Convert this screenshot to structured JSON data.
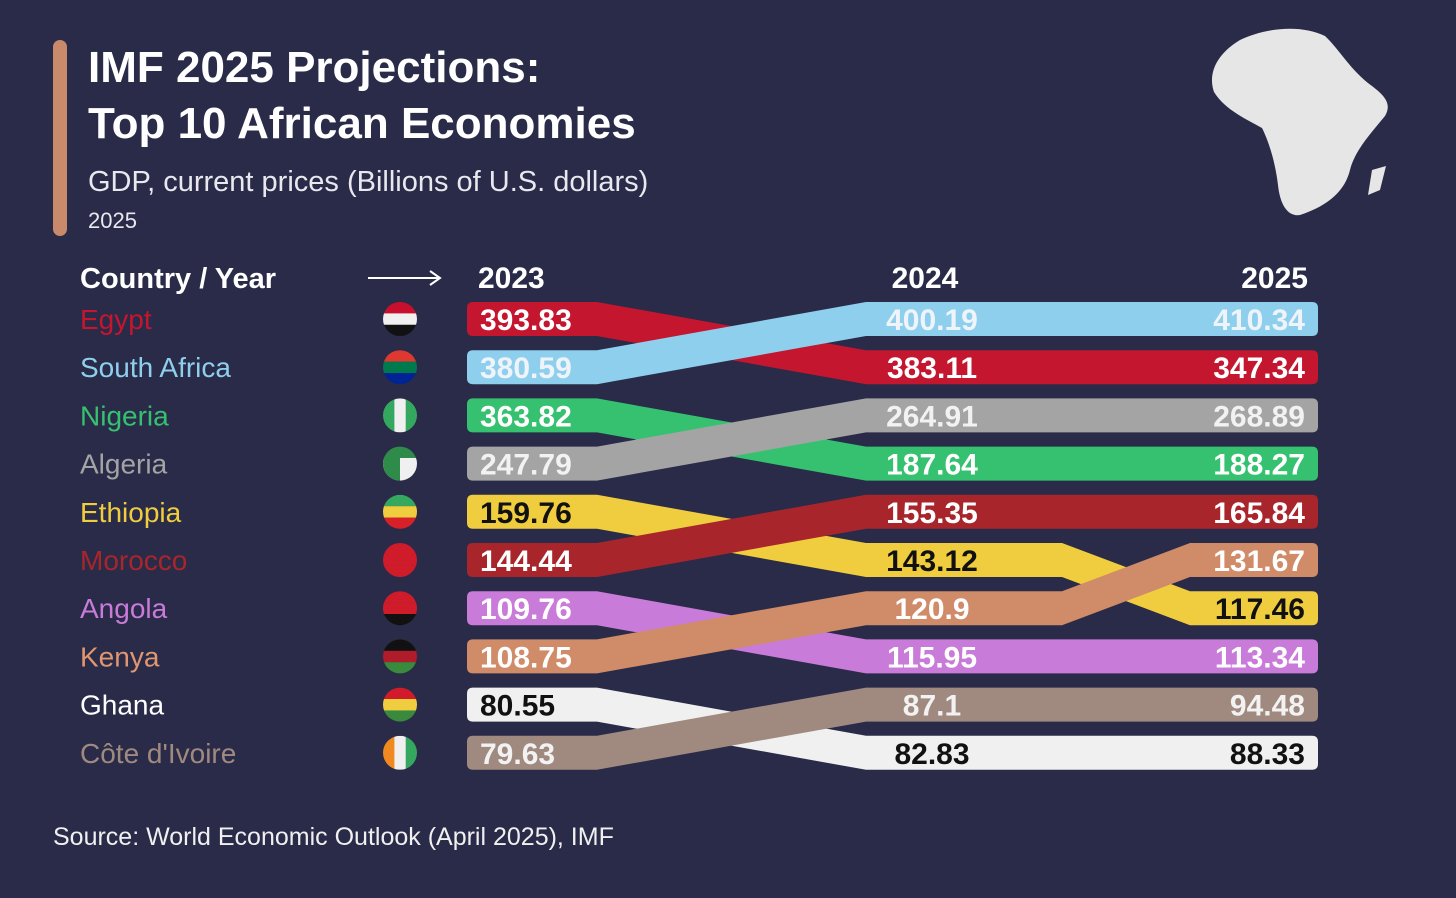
{
  "title_line1": "IMF 2025 Projections:",
  "title_line2": "Top 10 African Economies",
  "subtitle": "GDP, current prices (Billions of U.S. dollars)",
  "year_note": "2025",
  "source": "Source: World Economic Outlook (April 2025), IMF",
  "icons": {
    "map": "africa-map-icon",
    "arrow": "arrow-right-icon"
  },
  "chart_data": {
    "type": "bump",
    "header_label": "Country / Year",
    "years": [
      "2023",
      "2024",
      "2025"
    ],
    "series": [
      {
        "name": "Egypt",
        "color": "#c4162f",
        "text": "#ffffff",
        "values": [
          393.83,
          383.11,
          347.34
        ]
      },
      {
        "name": "South Africa",
        "color": "#8fcfee",
        "text": "#eef4fa",
        "values": [
          380.59,
          400.19,
          410.34
        ]
      },
      {
        "name": "Nigeria",
        "color": "#35c16f",
        "text": "#ffffff",
        "values": [
          363.82,
          187.64,
          188.27
        ]
      },
      {
        "name": "Algeria",
        "color": "#a4a4a4",
        "text": "#f2f2f2",
        "values": [
          247.79,
          264.91,
          268.89
        ]
      },
      {
        "name": "Ethiopia",
        "color": "#f0cd3e",
        "text": "#111111",
        "values": [
          159.76,
          143.12,
          117.46
        ]
      },
      {
        "name": "Morocco",
        "color": "#a8262b",
        "text": "#ffffff",
        "values": [
          144.44,
          155.35,
          165.84
        ]
      },
      {
        "name": "Angola",
        "color": "#c97bd9",
        "text": "#ffffff",
        "values": [
          109.76,
          115.95,
          113.34
        ]
      },
      {
        "name": "Kenya",
        "color": "#d08b68",
        "text": "#ffffff",
        "values": [
          108.75,
          120.9,
          131.67
        ]
      },
      {
        "name": "Ghana",
        "color": "#f0f0f0",
        "text": "#111111",
        "values": [
          80.55,
          82.83,
          88.33
        ]
      },
      {
        "name": "Côte d'Ivoire",
        "color": "#a08a80",
        "text": "#f2f2f2",
        "values": [
          79.63,
          87.1,
          94.48
        ]
      }
    ],
    "label_colors": [
      "#c4162f",
      "#8fcfee",
      "#35c16f",
      "#a4a4a4",
      "#f0cd3e",
      "#a8262b",
      "#c97bd9",
      "#e09670",
      "#ffffff",
      "#a08a80"
    ]
  }
}
